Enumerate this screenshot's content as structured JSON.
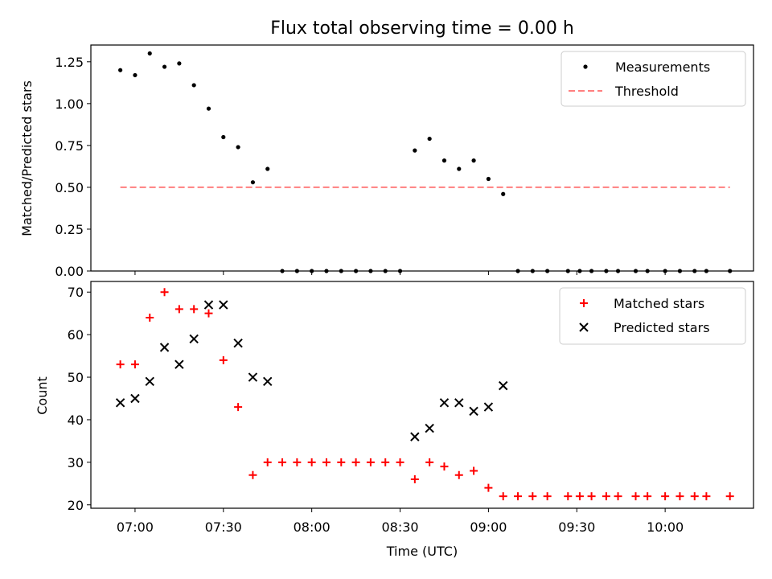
{
  "chart_data": [
    {
      "type": "scatter",
      "title": "Flux total observing time = 0.00 h",
      "xlabel": "",
      "ylabel": "Matched/Predicted stars",
      "xlim": [
        "06:45",
        "10:30"
      ],
      "ylim": [
        0,
        1.35
      ],
      "yticks": [
        "0.00",
        "0.25",
        "0.50",
        "0.75",
        "1.00",
        "1.25"
      ],
      "grid": false,
      "legend_position": "top-right",
      "series": [
        {
          "name": "Measurements",
          "marker": "dot",
          "color": "#000000",
          "x": [
            "06:55",
            "07:00",
            "07:05",
            "07:10",
            "07:15",
            "07:20",
            "07:25",
            "07:30",
            "07:35",
            "07:40",
            "07:45",
            "07:50",
            "07:55",
            "08:00",
            "08:05",
            "08:10",
            "08:15",
            "08:20",
            "08:25",
            "08:30",
            "08:35",
            "08:40",
            "08:45",
            "08:50",
            "08:55",
            "09:00",
            "09:05",
            "09:10",
            "09:15",
            "09:20",
            "09:27",
            "09:31",
            "09:35",
            "09:40",
            "09:44",
            "09:50",
            "09:54",
            "10:00",
            "10:05",
            "10:10",
            "10:14",
            "10:22"
          ],
          "y": [
            1.2,
            1.17,
            1.3,
            1.22,
            1.24,
            1.11,
            0.97,
            0.8,
            0.74,
            0.53,
            0.61,
            0,
            0,
            0,
            0,
            0,
            0,
            0,
            0,
            0,
            0.72,
            0.79,
            0.66,
            0.61,
            0.66,
            0.55,
            0.46,
            0,
            0,
            0,
            0,
            0,
            0,
            0,
            0,
            0,
            0,
            0,
            0,
            0,
            0,
            0
          ]
        },
        {
          "name": "Threshold",
          "style": "dashed",
          "color": "#ff7f7f",
          "x": [
            "06:55",
            "10:22"
          ],
          "y": [
            0.5,
            0.5
          ]
        }
      ]
    },
    {
      "type": "scatter",
      "title": "",
      "xlabel": "Time (UTC)",
      "ylabel": "Count",
      "xlim": [
        "06:45",
        "10:30"
      ],
      "xticks": [
        "07:00",
        "07:30",
        "08:00",
        "08:30",
        "09:00",
        "09:30",
        "10:00"
      ],
      "ylim": [
        19.2,
        72.5
      ],
      "yticks": [
        "20",
        "30",
        "40",
        "50",
        "60",
        "70"
      ],
      "grid": false,
      "legend_position": "top-right",
      "series": [
        {
          "name": "Matched stars",
          "marker": "plus",
          "color": "#ff0000",
          "x": [
            "06:55",
            "07:00",
            "07:05",
            "07:10",
            "07:15",
            "07:20",
            "07:25",
            "07:30",
            "07:35",
            "07:40",
            "07:45",
            "07:50",
            "07:55",
            "08:00",
            "08:05",
            "08:10",
            "08:15",
            "08:20",
            "08:25",
            "08:30",
            "08:35",
            "08:40",
            "08:45",
            "08:50",
            "08:55",
            "09:00",
            "09:05",
            "09:10",
            "09:15",
            "09:20",
            "09:27",
            "09:31",
            "09:35",
            "09:40",
            "09:44",
            "09:50",
            "09:54",
            "10:00",
            "10:05",
            "10:10",
            "10:14",
            "10:22"
          ],
          "y": [
            53,
            53,
            64,
            70,
            66,
            66,
            65,
            54,
            43,
            27,
            30,
            30,
            30,
            30,
            30,
            30,
            30,
            30,
            30,
            30,
            26,
            30,
            29,
            27,
            28,
            24,
            22,
            22,
            22,
            22,
            22,
            22,
            22,
            22,
            22,
            22,
            22,
            22,
            22,
            22,
            22,
            22
          ]
        },
        {
          "name": "Predicted stars",
          "marker": "x",
          "color": "#000000",
          "x": [
            "06:55",
            "07:00",
            "07:05",
            "07:10",
            "07:15",
            "07:20",
            "07:25",
            "07:30",
            "07:35",
            "07:40",
            "07:45",
            "08:35",
            "08:40",
            "08:45",
            "08:50",
            "08:55",
            "09:00",
            "09:05"
          ],
          "y": [
            44,
            45,
            49,
            57,
            53,
            59,
            67,
            67,
            58,
            50,
            49,
            36,
            38,
            44,
            44,
            42,
            43,
            48
          ]
        }
      ]
    }
  ]
}
